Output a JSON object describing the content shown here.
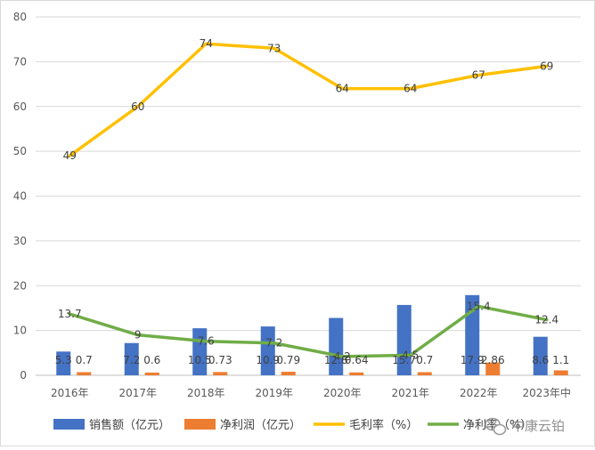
{
  "chart_data": {
    "type": "bar",
    "categories": [
      "2016年",
      "2017年",
      "2018年",
      "2019年",
      "2020年",
      "2021年",
      "2022年",
      "2023年中"
    ],
    "ylim": [
      0,
      80
    ],
    "yticks": [
      0,
      10,
      20,
      30,
      40,
      50,
      60,
      70,
      80
    ],
    "grid": true,
    "legend_position": "bottom",
    "series": [
      {
        "name": "销售额（亿元）",
        "type": "bar",
        "color": "#4472c4",
        "values": [
          5.3,
          7.2,
          10.5,
          10.9,
          12.8,
          15.7,
          17.9,
          8.6
        ],
        "labels": [
          "5.3",
          "7.2",
          "10.5",
          "10.9",
          "12.8",
          "15.7",
          "17.9",
          "8.6"
        ]
      },
      {
        "name": "净利润（亿元）",
        "type": "bar",
        "color": "#ed7d31",
        "values": [
          0.7,
          0.6,
          0.73,
          0.79,
          0.64,
          0.7,
          2.86,
          1.1
        ],
        "labels": [
          "0.7",
          "0.6",
          "0.73",
          "0.79",
          "0.64",
          "0.7",
          "2.86",
          "1.1"
        ]
      },
      {
        "name": "毛利率（%）",
        "type": "line",
        "color": "#ffc000",
        "values": [
          49,
          60,
          74,
          73,
          64,
          64,
          67,
          69
        ],
        "labels": [
          "49",
          "60",
          "74",
          "73",
          "64",
          "64",
          "67",
          "69"
        ]
      },
      {
        "name": "净利率（%）",
        "type": "line",
        "color": "#70ad47",
        "values": [
          13.7,
          9,
          7.6,
          7.2,
          4.2,
          4.5,
          15.4,
          12.4
        ],
        "labels": [
          "13.7",
          "9",
          "7.6",
          "7.2",
          "4.2",
          "4.5",
          "15.4",
          "12.4"
        ]
      }
    ]
  },
  "watermark": {
    "text": "中康云铂",
    "icon": "wechat-icon"
  }
}
